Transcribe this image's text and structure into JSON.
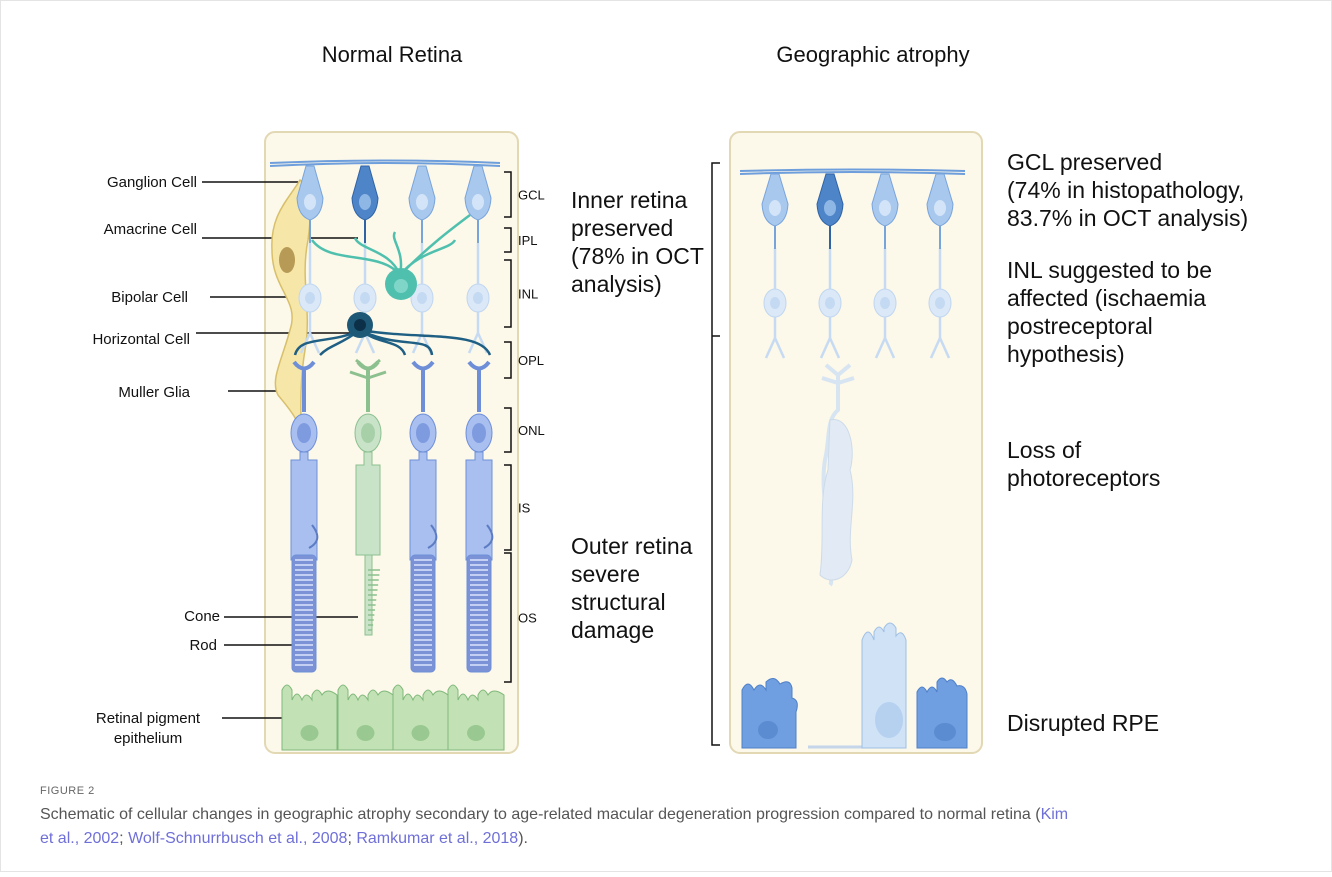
{
  "figure": {
    "panels": [
      {
        "title": "Normal Retina",
        "cell_labels": [
          "Ganglion Cell",
          "Amacrine Cell",
          "Bipolar Cell",
          "Horizontal Cell",
          "Muller Glia",
          "Cone",
          "Rod"
        ],
        "rpe_label": [
          "Retinal pigment",
          "epithelium"
        ],
        "layer_labels": [
          "GCL",
          "IPL",
          "INL",
          "OPL",
          "ONL",
          "IS",
          "OS"
        ]
      },
      {
        "title": "Geographic atrophy",
        "annotations": [
          [
            "GCL preserved",
            "(74% in histopathology,",
            "83.7% in OCT analysis)"
          ],
          [
            "INL suggested to be",
            "affected (ischaemia",
            "postreceptoral",
            "hypothesis)"
          ],
          [
            "Loss of",
            "photoreceptors"
          ],
          [
            "Disrupted RPE"
          ]
        ]
      }
    ],
    "bracket_notes": [
      [
        "Inner retina",
        "preserved",
        "(78% in OCT",
        "analysis)"
      ],
      [
        "Outer retina",
        "severe",
        "structural",
        "damage"
      ]
    ],
    "label": "FIGURE 2",
    "caption": {
      "lines": [
        [
          "Schematic of cellular changes in geographic atrophy secondary to age-related macular degeneration progression compared to normal retina (",
          "Kim"
        ],
        [
          "et al., 2002",
          "; ",
          "Wolf-Schnurrbusch et al., 2008",
          "; ",
          "Ramkumar et al., 2018",
          ")."
        ]
      ]
    }
  }
}
